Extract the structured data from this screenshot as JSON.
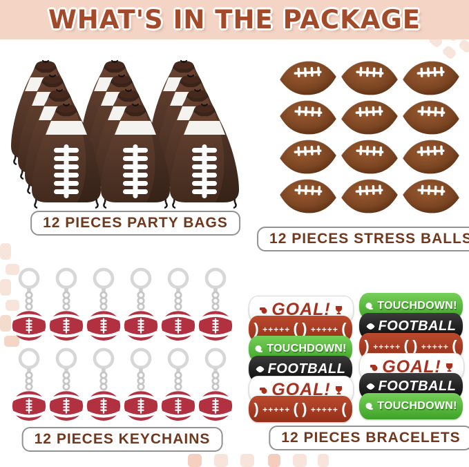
{
  "title": "WHAT'S IN THE PACKAGE",
  "sections": {
    "party_bags": {
      "label": "12 PIECES PARTY BAGS",
      "count": 12,
      "cols": 3,
      "layers": 4
    },
    "stress_balls": {
      "label": "12 PIECES STRESS BALLS",
      "count": 12,
      "cols": 3,
      "rows": 4
    },
    "keychains": {
      "label": "12 PIECES KEYCHAINS",
      "count": 12,
      "cols": 6,
      "rows": 2
    },
    "bracelets": {
      "label": "12 PIECES BRACELETS",
      "count": 12,
      "designs": {
        "goal": {
          "text": "GOAL!",
          "bg": "#ffffff",
          "text_color": "#a8301f",
          "icons": [
            "whistle-icon",
            "trophy-icon"
          ]
        },
        "laces": {
          "text": ") +++++ (  ) +++++ (",
          "bg": "#ab3a22",
          "text_color": "#ffffff",
          "icons": []
        },
        "touchdown": {
          "text": "TOUCHDOWN!",
          "bg": "#58b83d",
          "text_color": "#ffffff",
          "icons": [
            "helmet-icon"
          ]
        },
        "football": {
          "text": "FOOTBALL",
          "bg": "#1b1b1b",
          "text_color": "#ffffff",
          "icons": [
            "football-icon"
          ]
        }
      },
      "left_stack": [
        "goal",
        "laces",
        "touchdown",
        "football",
        "goal",
        "laces"
      ],
      "right_stack": [
        "touchdown",
        "football",
        "laces",
        "goal",
        "football",
        "touchdown"
      ]
    }
  },
  "colors": {
    "banner_bg": "#f3d4c5",
    "title": "#a24a2a",
    "label_text": "#70381c",
    "label_border": "#929292",
    "bag_brown": "#5d3c2a",
    "ball_brown": "#7c4623",
    "keychain_red": "#b23140",
    "bracelet_green": "#58b83d",
    "bracelet_red": "#ab3a22",
    "bracelet_black": "#1b1b1b",
    "bracelet_white": "#ffffff",
    "watermark_pink": "#f7e5db"
  }
}
